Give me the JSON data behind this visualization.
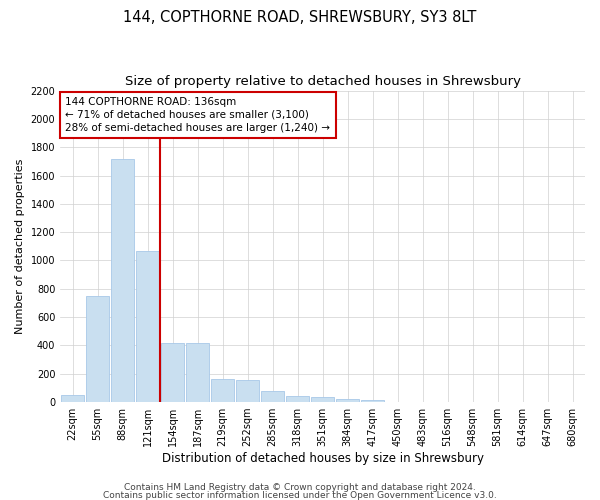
{
  "title": "144, COPTHORNE ROAD, SHREWSBURY, SY3 8LT",
  "subtitle": "Size of property relative to detached houses in Shrewsbury",
  "xlabel": "Distribution of detached houses by size in Shrewsbury",
  "ylabel": "Number of detached properties",
  "bar_color": "#c9dff0",
  "bar_edgecolor": "#a8c8e8",
  "background_color": "#ffffff",
  "grid_color": "#d0d0d0",
  "annotation_box_color": "#cc0000",
  "vline_color": "#cc0000",
  "vline_x_index": 3,
  "annotation_text": "144 COPTHORNE ROAD: 136sqm\n← 71% of detached houses are smaller (3,100)\n28% of semi-detached houses are larger (1,240) →",
  "categories": [
    "22sqm",
    "55sqm",
    "88sqm",
    "121sqm",
    "154sqm",
    "187sqm",
    "219sqm",
    "252sqm",
    "285sqm",
    "318sqm",
    "351sqm",
    "384sqm",
    "417sqm",
    "450sqm",
    "483sqm",
    "516sqm",
    "548sqm",
    "581sqm",
    "614sqm",
    "647sqm",
    "680sqm"
  ],
  "values": [
    50,
    750,
    1720,
    1070,
    420,
    420,
    160,
    155,
    75,
    40,
    35,
    25,
    15,
    0,
    0,
    0,
    0,
    0,
    0,
    0,
    0
  ],
  "ylim": [
    0,
    2200
  ],
  "yticks": [
    0,
    200,
    400,
    600,
    800,
    1000,
    1200,
    1400,
    1600,
    1800,
    2000,
    2200
  ],
  "footer1": "Contains HM Land Registry data © Crown copyright and database right 2024.",
  "footer2": "Contains public sector information licensed under the Open Government Licence v3.0.",
  "title_fontsize": 10.5,
  "subtitle_fontsize": 9.5,
  "xlabel_fontsize": 8.5,
  "ylabel_fontsize": 8,
  "tick_fontsize": 7,
  "footer_fontsize": 6.5,
  "annot_fontsize": 7.5
}
